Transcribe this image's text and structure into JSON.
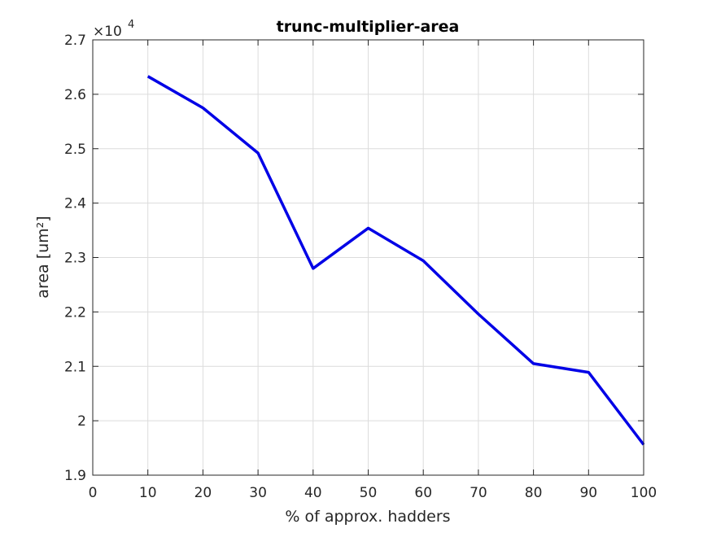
{
  "chart_data": {
    "type": "line",
    "title": "trunc-multiplier-area",
    "xlabel": "% of approx. hadders",
    "ylabel": "area [um²]",
    "exponent_label": {
      "base": "×10",
      "power": "4"
    },
    "xlim": [
      0,
      100
    ],
    "ylim": [
      1.9,
      2.7
    ],
    "xticks": [
      0,
      10,
      20,
      30,
      40,
      50,
      60,
      70,
      80,
      90,
      100
    ],
    "xtick_labels": [
      "0",
      "10",
      "20",
      "30",
      "40",
      "50",
      "60",
      "70",
      "80",
      "90",
      "100"
    ],
    "yticks": [
      1.9,
      2.0,
      2.1,
      2.2,
      2.3,
      2.4,
      2.5,
      2.6,
      2.7
    ],
    "ytick_labels": [
      "1.9",
      "2",
      "2.1",
      "2.2",
      "2.3",
      "2.4",
      "2.5",
      "2.6",
      "2.7"
    ],
    "grid": true,
    "series": [
      {
        "color": "#0000e6",
        "x": [
          10,
          20,
          30,
          40,
          50,
          60,
          70,
          80,
          90,
          100
        ],
        "y": [
          2.633,
          2.575,
          2.492,
          2.28,
          2.354,
          2.294,
          2.196,
          2.105,
          2.089,
          1.956
        ]
      }
    ]
  }
}
